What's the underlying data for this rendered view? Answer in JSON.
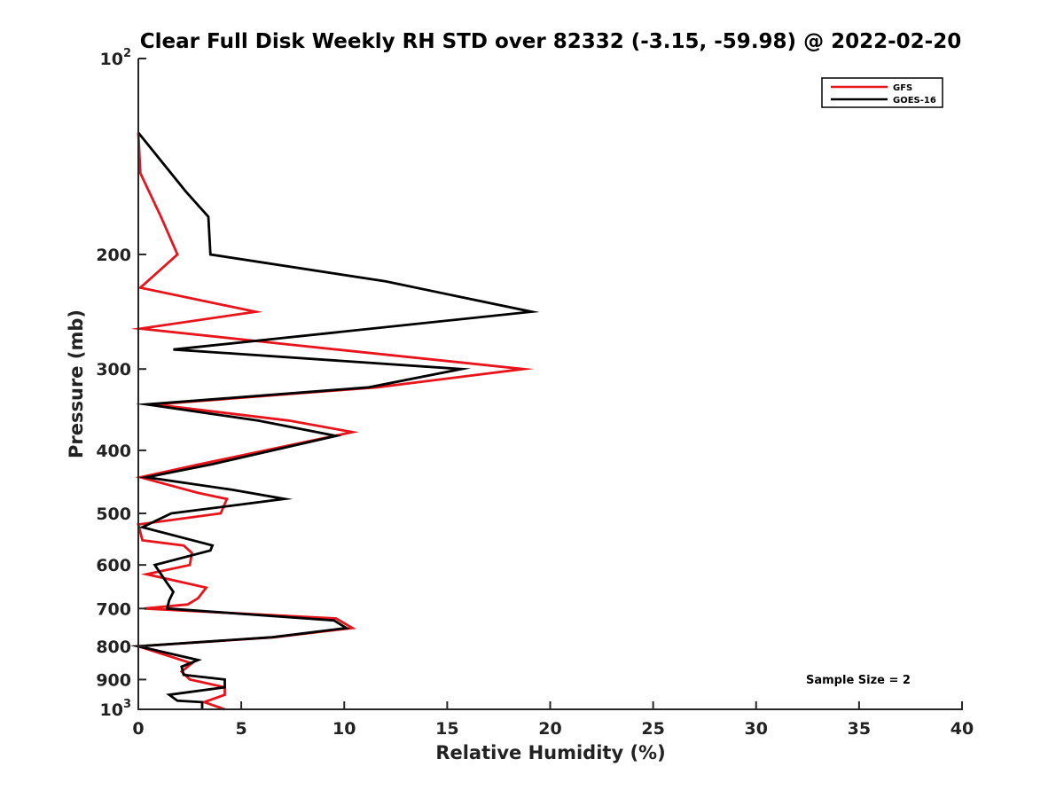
{
  "chart_data": {
    "type": "line",
    "title": "Clear Full Disk Weekly RH STD over 82332 (-3.15, -59.98) @ 2022-02-20",
    "xlabel": "Relative Humidity (%)",
    "ylabel": "Pressure (mb)",
    "xlim": [
      0,
      40
    ],
    "ylim": [
      100,
      1000
    ],
    "y_scale": "log",
    "y_reversed": true,
    "x_ticks": [
      "0",
      "5",
      "10",
      "15",
      "20",
      "25",
      "30",
      "35",
      "40"
    ],
    "y_ticks": [
      {
        "value": 100,
        "base": "10",
        "exp": "2"
      },
      {
        "value": 200,
        "label": "200"
      },
      {
        "value": 300,
        "label": "300"
      },
      {
        "value": 400,
        "label": "400"
      },
      {
        "value": 500,
        "label": "500"
      },
      {
        "value": 600,
        "label": "600"
      },
      {
        "value": 700,
        "label": "700"
      },
      {
        "value": 800,
        "label": "800"
      },
      {
        "value": 900,
        "label": "900"
      },
      {
        "value": 1000,
        "base": "10",
        "exp": "3"
      }
    ],
    "grid": false,
    "legend_position": "top-right",
    "annotation": "Sample Size = 2",
    "series": [
      {
        "name": "GFS",
        "color": "#e8141b",
        "points": [
          [
            4.2,
            1000
          ],
          [
            3.2,
            975
          ],
          [
            4.2,
            950
          ],
          [
            4.2,
            925
          ],
          [
            2.5,
            900
          ],
          [
            2.1,
            875
          ],
          [
            2.6,
            850
          ],
          [
            0,
            800
          ],
          [
            6.6,
            775
          ],
          [
            10.4,
            750
          ],
          [
            9.6,
            725
          ],
          [
            0.3,
            700
          ],
          [
            2.4,
            690
          ],
          [
            2.9,
            675
          ],
          [
            3.3,
            650
          ],
          [
            0.4,
            620
          ],
          [
            2.5,
            600
          ],
          [
            2.6,
            575
          ],
          [
            2.2,
            560
          ],
          [
            0.2,
            550
          ],
          [
            0,
            520
          ],
          [
            4.0,
            500
          ],
          [
            4.3,
            475
          ],
          [
            2.9,
            465
          ],
          [
            0.1,
            440
          ],
          [
            3.0,
            420
          ],
          [
            10.4,
            375
          ],
          [
            7.3,
            360
          ],
          [
            0.8,
            340
          ],
          [
            11.6,
            320
          ],
          [
            18.7,
            300
          ],
          [
            7.3,
            275
          ],
          [
            0.1,
            260
          ],
          [
            5.7,
            245
          ],
          [
            0.1,
            225
          ],
          [
            1.9,
            200
          ],
          [
            1.1,
            175
          ],
          [
            0.1,
            150
          ],
          [
            0,
            130
          ]
        ]
      },
      {
        "name": "GOES-16",
        "color": "#000000",
        "points": [
          [
            3.1,
            1000
          ],
          [
            3.1,
            975
          ],
          [
            1.9,
            970
          ],
          [
            1.5,
            950
          ],
          [
            4.2,
            925
          ],
          [
            4.2,
            900
          ],
          [
            2.2,
            885
          ],
          [
            2.1,
            860
          ],
          [
            2.9,
            840
          ],
          [
            0,
            800
          ],
          [
            6.5,
            775
          ],
          [
            10.1,
            750
          ],
          [
            9.5,
            730
          ],
          [
            1.4,
            700
          ],
          [
            1.5,
            680
          ],
          [
            1.7,
            660
          ],
          [
            1.4,
            640
          ],
          [
            0.8,
            600
          ],
          [
            3.5,
            570
          ],
          [
            3.6,
            560
          ],
          [
            0.2,
            525
          ],
          [
            1.6,
            500
          ],
          [
            7.1,
            475
          ],
          [
            4.6,
            460
          ],
          [
            0.4,
            440
          ],
          [
            3.6,
            420
          ],
          [
            9.6,
            380
          ],
          [
            5.8,
            360
          ],
          [
            0.4,
            340
          ],
          [
            11.2,
            320
          ],
          [
            15.7,
            300
          ],
          [
            1.7,
            280
          ],
          [
            19.1,
            245
          ],
          [
            12.0,
            220
          ],
          [
            3.5,
            200
          ],
          [
            3.4,
            175
          ],
          [
            2.3,
            160
          ],
          [
            0,
            130
          ]
        ]
      }
    ]
  }
}
